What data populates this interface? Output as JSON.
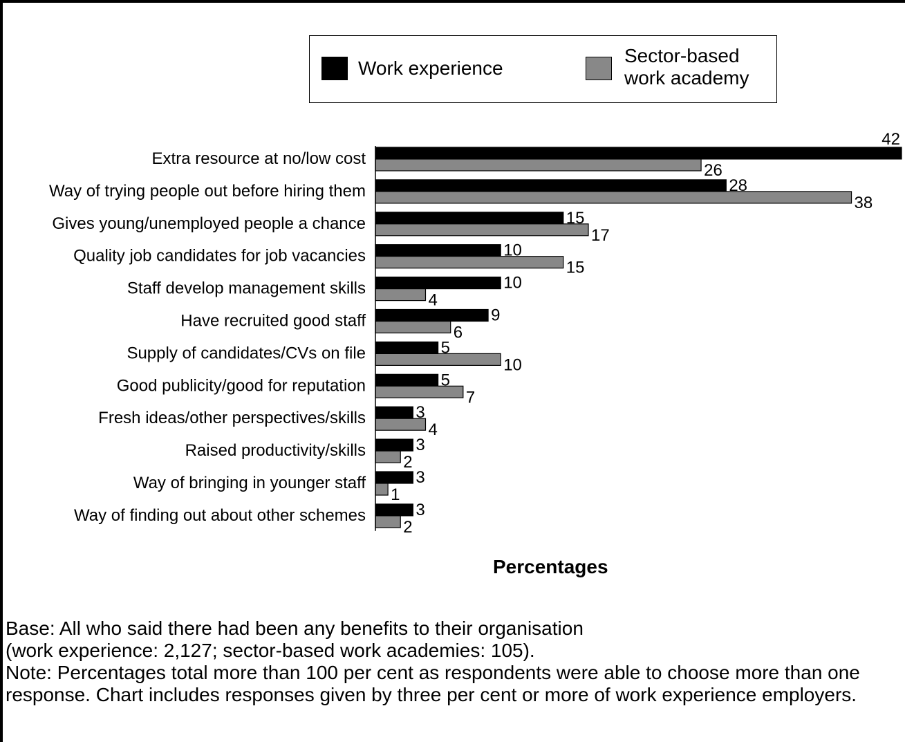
{
  "chart_data": {
    "type": "bar",
    "orientation": "horizontal",
    "categories": [
      "Extra resource at no/low cost",
      "Way of trying people out before hiring them",
      "Gives young/unemployed people a chance",
      "Quality job candidates for job vacancies",
      "Staff develop management skills",
      "Have recruited good staff",
      "Supply of candidates/CVs on file",
      "Good publicity/good for reputation",
      "Fresh ideas/other perspectives/skills",
      "Raised productivity/skills",
      "Way of bringing in younger staff",
      "Way of finding out about other schemes"
    ],
    "series": [
      {
        "name": "Work experience",
        "color": "#000000",
        "values": [
          42,
          28,
          15,
          10,
          10,
          9,
          5,
          5,
          3,
          3,
          3,
          3
        ]
      },
      {
        "name": "Sector-based work academy",
        "color": "#888888",
        "values": [
          26,
          38,
          17,
          15,
          4,
          6,
          10,
          7,
          4,
          2,
          1,
          2
        ]
      }
    ],
    "xlabel": "Percentages",
    "xlim": [
      0,
      42
    ],
    "grid": false,
    "legend_position": "top"
  },
  "legend": {
    "work_label": "Work experience",
    "sector_label": "Sector-based work academy"
  },
  "notes": {
    "base_line1": "Base: All who said there had been any benefits to their organisation",
    "base_line2": "(work experience: 2,127; sector-based work academies: 105).",
    "note": "Note: Percentages total more than 100 per cent as respondents were able to choose more than one response. Chart includes responses given by three per cent or more of work experience employers."
  }
}
